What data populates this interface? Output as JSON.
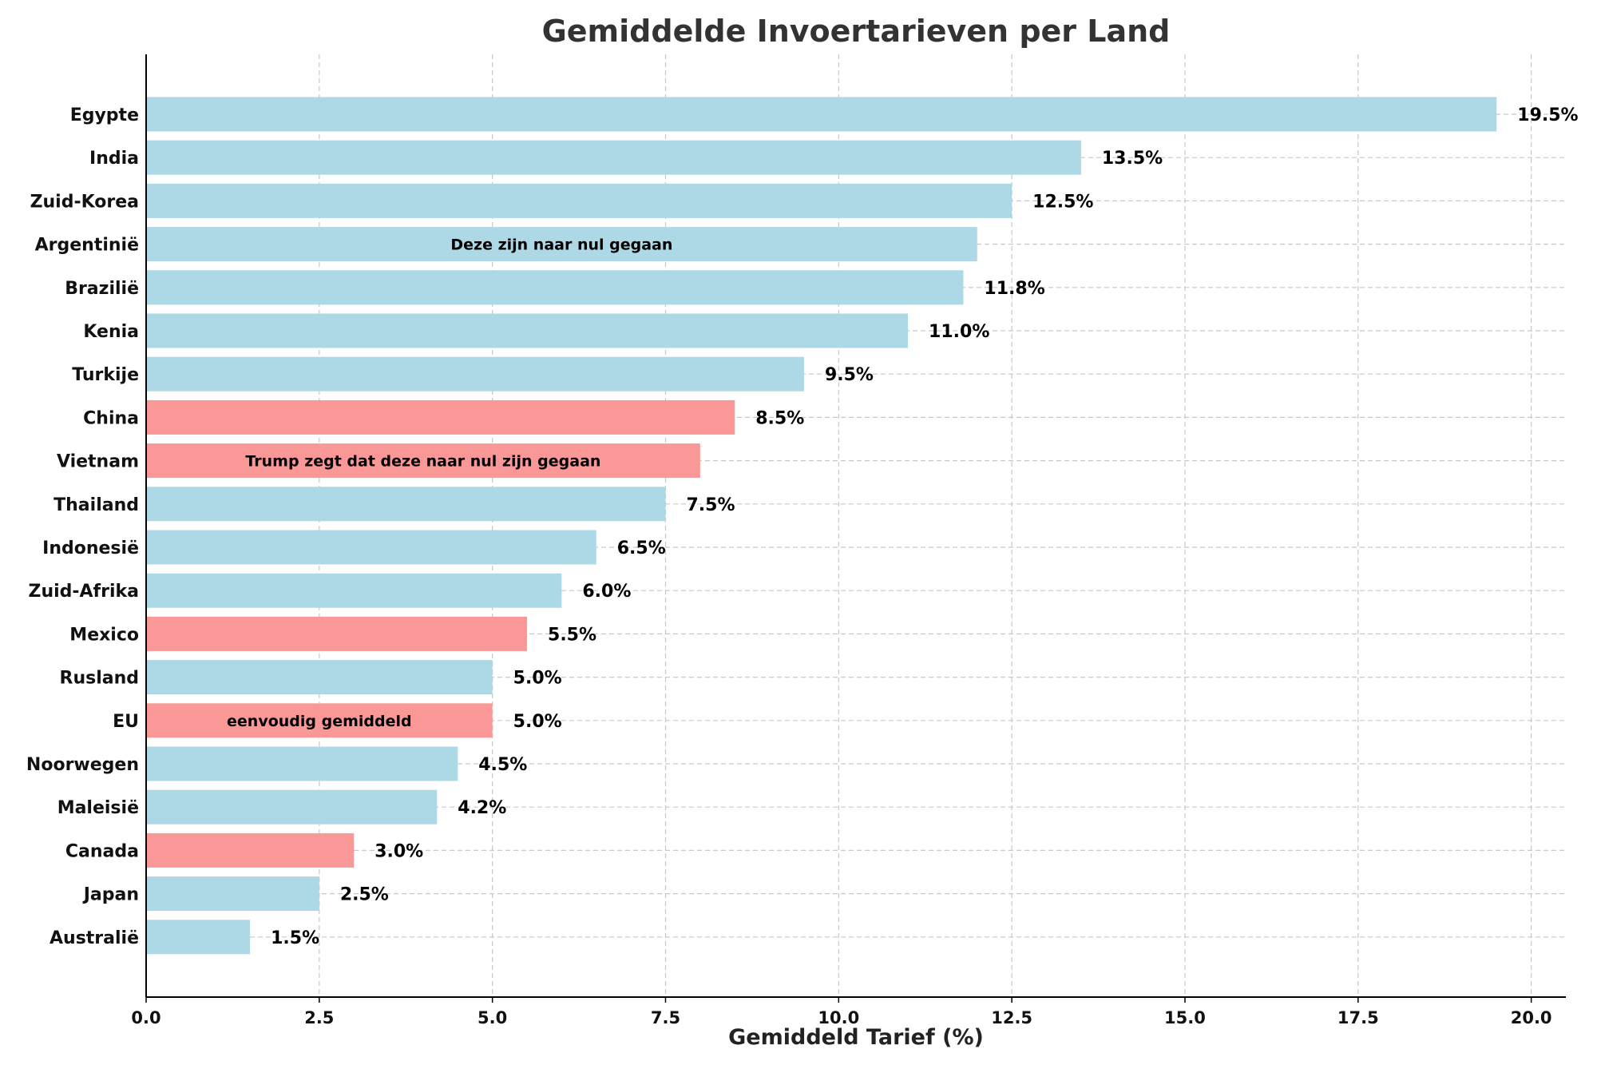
{
  "chart_data": {
    "type": "bar",
    "orientation": "horizontal",
    "title": "Gemiddelde Invoertarieven per Land",
    "xlabel": "Gemiddeld Tarief (%)",
    "ylabel": "",
    "xlim": [
      0,
      20.5
    ],
    "xticks": [
      0.0,
      2.5,
      5.0,
      7.5,
      10.0,
      12.5,
      15.0,
      17.5,
      20.0
    ],
    "xtick_labels": [
      "0.0",
      "2.5",
      "5.0",
      "7.5",
      "10.0",
      "12.5",
      "15.0",
      "17.5",
      "20.0"
    ],
    "grid": true,
    "colors": {
      "default": "#add8e6",
      "highlight": "#fa9898"
    },
    "bars": [
      {
        "country": "Egypte",
        "value": 19.5,
        "label": "19.5%",
        "highlight": false,
        "note": ""
      },
      {
        "country": "India",
        "value": 13.5,
        "label": "13.5%",
        "highlight": false,
        "note": ""
      },
      {
        "country": "Zuid-Korea",
        "value": 12.5,
        "label": "12.5%",
        "highlight": false,
        "note": ""
      },
      {
        "country": "Argentinië",
        "value": 12.0,
        "label": "",
        "highlight": false,
        "note": "Deze zijn naar nul gegaan"
      },
      {
        "country": "Brazilië",
        "value": 11.8,
        "label": "11.8%",
        "highlight": false,
        "note": ""
      },
      {
        "country": "Kenia",
        "value": 11.0,
        "label": "11.0%",
        "highlight": false,
        "note": ""
      },
      {
        "country": "Turkije",
        "value": 9.5,
        "label": "9.5%",
        "highlight": false,
        "note": ""
      },
      {
        "country": "China",
        "value": 8.5,
        "label": "8.5%",
        "highlight": true,
        "note": ""
      },
      {
        "country": "Vietnam",
        "value": 8.0,
        "label": "",
        "highlight": true,
        "note": "Trump zegt dat deze naar nul zijn gegaan"
      },
      {
        "country": "Thailand",
        "value": 7.5,
        "label": "7.5%",
        "highlight": false,
        "note": ""
      },
      {
        "country": "Indonesië",
        "value": 6.5,
        "label": "6.5%",
        "highlight": false,
        "note": ""
      },
      {
        "country": "Zuid-Afrika",
        "value": 6.0,
        "label": "6.0%",
        "highlight": false,
        "note": ""
      },
      {
        "country": "Mexico",
        "value": 5.5,
        "label": "5.5%",
        "highlight": true,
        "note": ""
      },
      {
        "country": "Rusland",
        "value": 5.0,
        "label": "5.0%",
        "highlight": false,
        "note": ""
      },
      {
        "country": "EU",
        "value": 5.0,
        "label": "5.0%",
        "highlight": true,
        "note": "eenvoudig gemiddeld"
      },
      {
        "country": "Noorwegen",
        "value": 4.5,
        "label": "4.5%",
        "highlight": false,
        "note": ""
      },
      {
        "country": "Maleisië",
        "value": 4.2,
        "label": "4.2%",
        "highlight": false,
        "note": ""
      },
      {
        "country": "Canada",
        "value": 3.0,
        "label": "3.0%",
        "highlight": true,
        "note": ""
      },
      {
        "country": "Japan",
        "value": 2.5,
        "label": "2.5%",
        "highlight": false,
        "note": ""
      },
      {
        "country": "Australië",
        "value": 1.5,
        "label": "1.5%",
        "highlight": false,
        "note": ""
      }
    ]
  }
}
